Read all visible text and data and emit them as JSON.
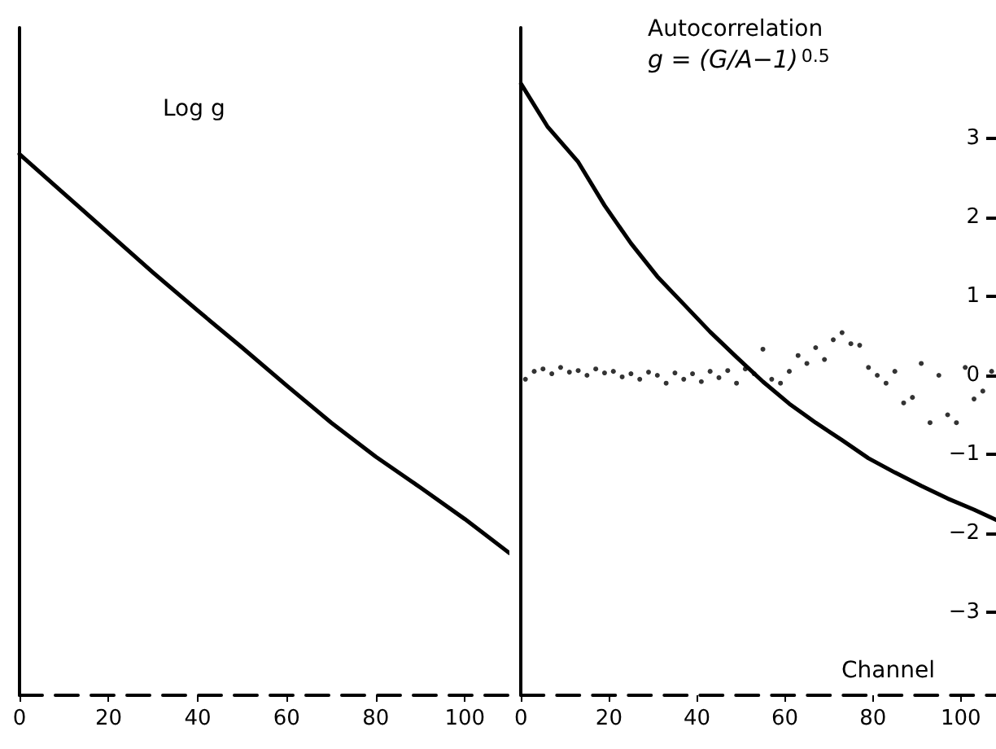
{
  "chart_data": [
    {
      "type": "line",
      "title": "Log g",
      "xlim": [
        0,
        110
      ],
      "xticks": [
        0,
        20,
        40,
        60,
        80,
        100
      ],
      "ylim": [
        -4.05,
        4.4
      ],
      "tick_labels": "x",
      "marker": "none",
      "line_style": "solid",
      "series": [
        {
          "color": "#000000",
          "x": [
            0,
            10,
            20,
            30,
            40,
            50,
            60,
            70,
            80,
            90,
            100,
            110
          ],
          "values": [
            2.8,
            2.3,
            1.8,
            1.3,
            0.82,
            0.35,
            -0.13,
            -0.6,
            -1.03,
            -1.42,
            -1.82,
            -2.25
          ]
        }
      ]
    },
    {
      "type": "line",
      "title": "Autocorrelation",
      "subtitle": "g = (G/A−1)$^{0.5}$",
      "xlabel": "Channel",
      "xlim": [
        0,
        108
      ],
      "xticks": [
        0,
        20,
        40,
        60,
        80,
        100
      ],
      "ylim": [
        -4.05,
        4.4
      ],
      "yticks": [
        -3,
        -2,
        -1,
        0,
        1,
        2,
        3
      ],
      "marker": "none",
      "line_style": "solid",
      "series": [
        {
          "color": "#000000",
          "x": [
            0,
            6,
            13,
            19,
            25,
            31,
            37,
            43,
            49,
            55,
            61,
            67,
            73,
            79,
            85,
            91,
            97,
            103,
            108
          ],
          "values": [
            3.69,
            3.15,
            2.7,
            2.15,
            1.67,
            1.25,
            0.9,
            0.55,
            0.23,
            -0.08,
            -0.36,
            -0.6,
            -0.82,
            -1.05,
            -1.23,
            -1.4,
            -1.56,
            -1.7,
            -1.83
          ]
        },
        {
          "type": "scatter",
          "color": "#000000",
          "x": [
            1,
            3,
            5,
            7,
            9,
            11,
            13,
            15,
            17,
            19,
            21,
            23,
            25,
            27,
            29,
            31,
            33,
            35,
            37,
            39,
            41,
            43,
            45,
            47,
            49,
            51,
            53,
            55,
            57,
            59,
            61,
            63,
            65,
            67,
            69,
            71,
            73,
            75,
            77,
            79,
            81,
            83,
            85,
            87,
            89,
            91,
            93,
            95,
            97,
            99,
            101,
            103,
            105,
            107
          ],
          "values": [
            -0.05,
            0.05,
            0.08,
            0.02,
            0.1,
            0.04,
            0.06,
            0.0,
            0.08,
            0.03,
            0.05,
            -0.02,
            0.02,
            -0.05,
            0.04,
            0.0,
            -0.1,
            0.03,
            -0.05,
            0.02,
            -0.08,
            0.05,
            -0.03,
            0.06,
            -0.1,
            0.08,
            0.02,
            0.33,
            -0.05,
            -0.1,
            0.05,
            0.25,
            0.15,
            0.35,
            0.2,
            0.45,
            0.54,
            0.4,
            0.38,
            0.1,
            0.0,
            -0.1,
            0.05,
            -0.35,
            -0.28,
            0.15,
            -0.6,
            0.0,
            -0.5,
            -0.6,
            0.1,
            -0.3,
            -0.2,
            0.05
          ]
        }
      ]
    }
  ]
}
